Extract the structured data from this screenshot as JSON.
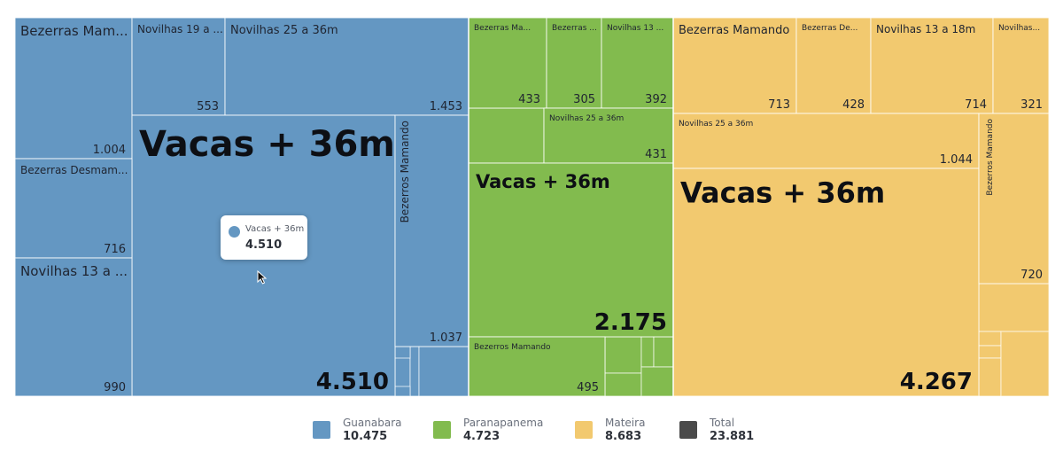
{
  "chart_data": {
    "type": "treemap",
    "groups": [
      {
        "name": "Guanabara",
        "color": "#6497c2",
        "total": "10.475",
        "items": [
          {
            "label": "Bezerras Mam...",
            "value": "1.004"
          },
          {
            "label": "Novilhas 19 a ...",
            "value": "553"
          },
          {
            "label": "Novilhas 25 a 36m",
            "value": "1.453"
          },
          {
            "label": "Vacas + 36m",
            "value": "4.510"
          },
          {
            "label": "Bezerras Desmam...",
            "value": "716"
          },
          {
            "label": "Novilhas 13 a ...",
            "value": "990"
          },
          {
            "label": "Bezerros Mamando",
            "value": "1.037"
          }
        ]
      },
      {
        "name": "Paranapanema",
        "color": "#82bb4e",
        "total": "4.723",
        "items": [
          {
            "label": "Bezerras Ma...",
            "value": "433"
          },
          {
            "label": "Bezerras ...",
            "value": "305"
          },
          {
            "label": "Novilhas 13 ...",
            "value": "392"
          },
          {
            "label": "Novilhas 25 a 36m",
            "value": "431"
          },
          {
            "label": "Vacas + 36m",
            "value": "2.175"
          },
          {
            "label": "Bezerros Mamando",
            "value": "495"
          }
        ]
      },
      {
        "name": "Mateira",
        "color": "#f2c96f",
        "total": "8.683",
        "items": [
          {
            "label": "Bezerras Mamando",
            "value": "713"
          },
          {
            "label": "Bezerras De...",
            "value": "428"
          },
          {
            "label": "Novilhas 13 a 18m",
            "value": "714"
          },
          {
            "label": "Novilhas...",
            "value": "321"
          },
          {
            "label": "Novilhas 25 a 36m",
            "value": "1.044"
          },
          {
            "label": "Vacas + 36m",
            "value": "4.267"
          },
          {
            "label": "Bezerros Mamando",
            "value": "720"
          }
        ]
      }
    ],
    "legend": [
      {
        "name": "Guanabara",
        "value": "10.475",
        "color": "#6497c2"
      },
      {
        "name": "Paranapanema",
        "value": "4.723",
        "color": "#82bb4e"
      },
      {
        "name": "Mateira",
        "value": "8.683",
        "color": "#f2c96f"
      },
      {
        "name": "Total",
        "value": "23.881",
        "color": "#4a4a4a"
      }
    ]
  },
  "tooltip": {
    "name": "Vacas + 36m",
    "value": "4.510",
    "color": "#6497c2"
  }
}
